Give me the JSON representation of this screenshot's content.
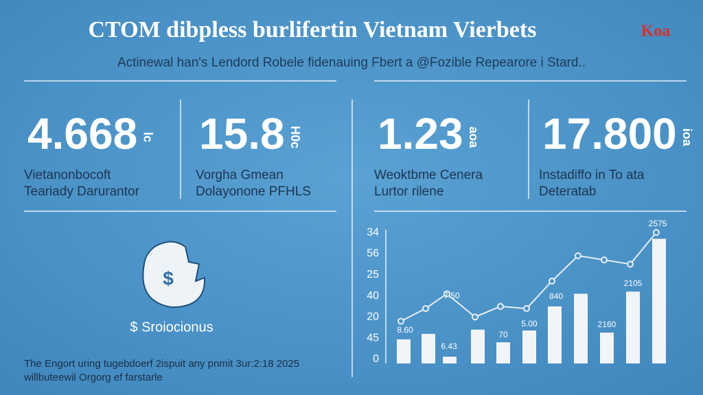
{
  "header": {
    "title": "CTOM dibpless burlifertin Vietnam Vierbets",
    "subtitle": "Actinewal  han's Lendord Robele fidenauing Fbert a @Fozible Repearore i Stard..",
    "logo": "Koa"
  },
  "stats": [
    {
      "number": "4.668",
      "unit": "lc",
      "caption": [
        "Vietanonbocoft",
        "Teariady Darurantor"
      ]
    },
    {
      "number": "15.8",
      "unit": "H0c",
      "caption": [
        "Vorgha Gmean",
        "Dolayonone PFHLS"
      ]
    },
    {
      "number": "1.23",
      "unit": "aoa",
      "caption": [
        "Weoktbme Cenera",
        "Lurtor rilene"
      ]
    },
    {
      "number": "17.800",
      "unit": "ioa",
      "caption": [
        "Instadiffo in To ata",
        "Deteratab"
      ]
    }
  ],
  "icon_caption": "$ Sroiocionus",
  "footer": [
    "The Engort uring tugebdoerf 2ispuit any pnmit 3ur:2:18 2025",
    "willbuteewil Orgorg ef farstarle"
  ],
  "chart_data": {
    "type": "bar",
    "color": "#f2f5f8",
    "line_color": "#e8eef4",
    "ylim": [
      0,
      62
    ],
    "yticks": [
      0,
      {
        "value": 10,
        "label": "45"
      },
      {
        "value": 20,
        "label": "20"
      },
      {
        "value": 30,
        "label": "40"
      },
      {
        "value": 40,
        "label": "25"
      },
      {
        "value": 50,
        "label": "56"
      },
      {
        "value": 60,
        "label": "34"
      }
    ],
    "values": [
      11.4,
      14,
      3.2,
      16,
      10,
      15.6,
      27,
      33,
      14.6,
      34,
      59
    ],
    "line_values": [
      20,
      26,
      33,
      22,
      27,
      26,
      39,
      51,
      49,
      47,
      62
    ],
    "annotations": [
      "8.60",
      "6.43",
      "7.50",
      "70",
      "5.00",
      "840",
      "2160",
      "2105",
      "2575"
    ]
  }
}
